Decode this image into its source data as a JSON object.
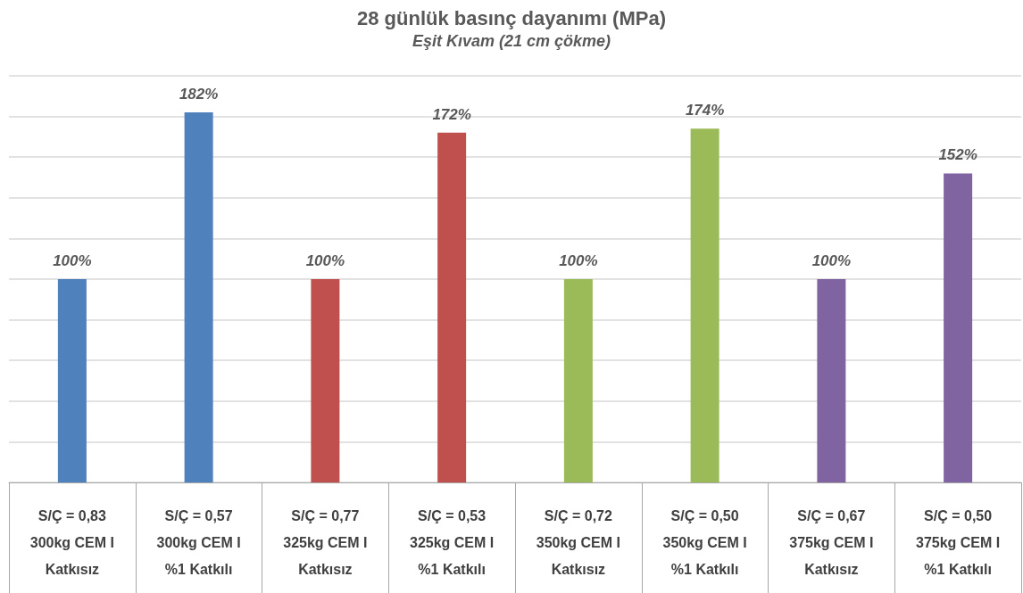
{
  "chart_data": {
    "type": "bar",
    "title": "28 günlük basınç dayanımı (MPa)",
    "subtitle": "Eşit Kıvam (21 cm çökme)",
    "categories": [
      "S/Ç = 0,83\n300kg CEM I\nKatkısız",
      "S/Ç = 0,57\n300kg CEM I\n%1 Katkılı",
      "S/Ç = 0,77\n325kg CEM I\nKatkısız",
      "S/Ç = 0,53\n325kg CEM I\n%1 Katkılı",
      "S/Ç = 0,72\n350kg CEM I\nKatkısız",
      "S/Ç = 0,50\n350kg CEM I\n%1 Katkılı",
      "S/Ç = 0,67\n375kg CEM I\nKatkısız",
      "S/Ç = 0,50\n375kg CEM I\n%1 Katkılı"
    ],
    "values": [
      100,
      182,
      100,
      172,
      100,
      174,
      100,
      152
    ],
    "value_labels": [
      "100%",
      "182%",
      "100%",
      "172%",
      "100%",
      "174%",
      "100%",
      "152%"
    ],
    "colors": [
      "#4f81bd",
      "#4f81bd",
      "#c0504d",
      "#c0504d",
      "#9bbb59",
      "#9bbb59",
      "#8064a2",
      "#8064a2"
    ],
    "ylim": [
      0,
      200
    ],
    "yticks": [
      {
        "value": 0,
        "label": null
      },
      {
        "value": 20,
        "label": null
      },
      {
        "value": 40,
        "label": null
      },
      {
        "value": 60,
        "label": null
      },
      {
        "value": 80,
        "label": null
      },
      {
        "value": 100,
        "label": null
      },
      {
        "value": 120,
        "label": null
      },
      {
        "value": 140,
        "label": null
      },
      {
        "value": 160,
        "label": null
      },
      {
        "value": 180,
        "label": null
      },
      {
        "value": 200,
        "label": null
      }
    ],
    "grid": "y",
    "tick_labels": "x"
  }
}
